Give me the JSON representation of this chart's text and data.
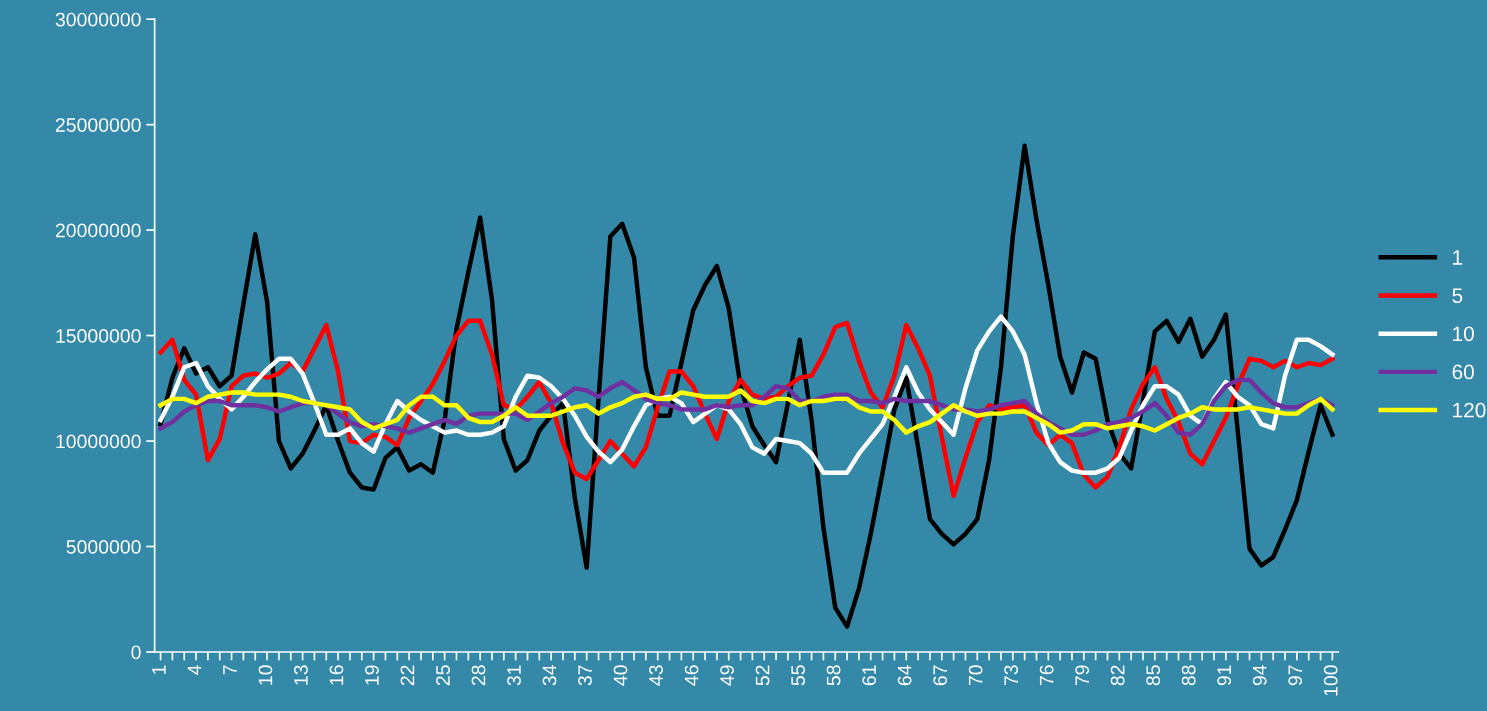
{
  "chart_data": {
    "type": "line",
    "categories": [
      "1",
      null,
      null,
      "4",
      null,
      null,
      "7",
      null,
      null,
      "10",
      null,
      null,
      "13",
      null,
      null,
      "16",
      null,
      null,
      "19",
      null,
      null,
      "22",
      null,
      null,
      "25",
      null,
      null,
      "28",
      null,
      null,
      "31",
      null,
      null,
      "34",
      null,
      null,
      "37",
      null,
      null,
      "40",
      null,
      null,
      "43",
      null,
      null,
      "46",
      null,
      null,
      "49",
      null,
      null,
      "52",
      null,
      null,
      "55",
      null,
      null,
      "58",
      null,
      null,
      "61",
      null,
      null,
      "64",
      null,
      null,
      "67",
      null,
      null,
      "70",
      null,
      null,
      "73",
      null,
      null,
      "76",
      null,
      null,
      "79",
      null,
      null,
      "82",
      null,
      null,
      "85",
      null,
      null,
      "88",
      null,
      null,
      "91",
      null,
      null,
      "94",
      null,
      null,
      "97",
      null,
      null,
      "100"
    ],
    "ylim": [
      0,
      30000000
    ],
    "yticks": [
      0,
      5000000,
      10000000,
      15000000,
      20000000,
      25000000,
      30000000
    ],
    "grid": false,
    "legend": "right",
    "marker": "none",
    "line_style": "solid",
    "series": [
      {
        "name": "1",
        "color": "#000000",
        "values": [
          10800000,
          13000000,
          14400000,
          13200000,
          13500000,
          12600000,
          13100000,
          16500000,
          19800000,
          16600000,
          10000000,
          8700000,
          9400000,
          10500000,
          11700000,
          10000000,
          8500000,
          7800000,
          7700000,
          9200000,
          9700000,
          8600000,
          8900000,
          8500000,
          11000000,
          15300000,
          18000000,
          20600000,
          16700000,
          10100000,
          8600000,
          9100000,
          10500000,
          11200000,
          11800000,
          7300000,
          4000000,
          12000000,
          19700000,
          20300000,
          18700000,
          13500000,
          11200000,
          11200000,
          13700000,
          16200000,
          17400000,
          18300000,
          16300000,
          12600000,
          10700000,
          9800000,
          9000000,
          11800000,
          14800000,
          11000000,
          5900000,
          2100000,
          1200000,
          3000000,
          5600000,
          8500000,
          11500000,
          13000000,
          9700000,
          6300000,
          5600000,
          5100000,
          5600000,
          6300000,
          9100000,
          13500000,
          19700000,
          24000000,
          20500000,
          17400000,
          14000000,
          12300000,
          14200000,
          13900000,
          11000000,
          9400000,
          8700000,
          11900000,
          15200000,
          15700000,
          14700000,
          15800000,
          14000000,
          14800000,
          16000000,
          10500000,
          4900000,
          4100000,
          4500000,
          5800000,
          7200000,
          9500000,
          11700000,
          10300000
        ]
      },
      {
        "name": "5",
        "color": "#ff0000",
        "values": [
          14200000,
          14800000,
          12900000,
          12200000,
          9100000,
          10100000,
          12600000,
          13100000,
          13200000,
          13000000,
          13200000,
          13700000,
          13300000,
          14400000,
          15500000,
          13300000,
          10000000,
          9900000,
          10300000,
          10200000,
          9800000,
          11100000,
          11900000,
          12700000,
          13800000,
          15000000,
          15700000,
          15700000,
          14100000,
          11700000,
          11500000,
          12100000,
          12800000,
          11800000,
          9900000,
          8500000,
          8200000,
          9100000,
          10000000,
          9400000,
          8800000,
          9700000,
          11600000,
          13300000,
          13300000,
          12600000,
          11300000,
          10100000,
          11900000,
          12900000,
          12200000,
          12000000,
          12100000,
          12600000,
          13000000,
          13100000,
          14100000,
          15400000,
          15600000,
          13800000,
          12300000,
          11600000,
          13100000,
          15500000,
          14400000,
          13100000,
          10200000,
          7400000,
          9200000,
          10900000,
          11700000,
          11500000,
          11600000,
          11700000,
          10400000,
          9800000,
          10300000,
          9900000,
          8400000,
          7800000,
          8300000,
          9700000,
          11500000,
          12700000,
          13500000,
          12000000,
          10900000,
          9400000,
          8900000,
          10000000,
          11100000,
          12600000,
          13900000,
          13800000,
          13500000,
          13800000,
          13500000,
          13700000,
          13600000,
          13900000
        ]
      },
      {
        "name": "10",
        "color": "#ffffff",
        "values": [
          11000000,
          12100000,
          13500000,
          13700000,
          12600000,
          12000000,
          11500000,
          12100000,
          12800000,
          13400000,
          13900000,
          13900000,
          13200000,
          11800000,
          10300000,
          10300000,
          10600000,
          9900000,
          9500000,
          10800000,
          11900000,
          11400000,
          11000000,
          10700000,
          10400000,
          10500000,
          10300000,
          10300000,
          10400000,
          10700000,
          12100000,
          13100000,
          13000000,
          12600000,
          12000000,
          11200000,
          10200000,
          9500000,
          9000000,
          9600000,
          10700000,
          11700000,
          12000000,
          12100000,
          11800000,
          10900000,
          11300000,
          11700000,
          11500000,
          10800000,
          9700000,
          9400000,
          10100000,
          10000000,
          9900000,
          9400000,
          8500000,
          8500000,
          8500000,
          9400000,
          10100000,
          10800000,
          12100000,
          13500000,
          12300000,
          11500000,
          10900000,
          10300000,
          12500000,
          14300000,
          15200000,
          15900000,
          15200000,
          14100000,
          11800000,
          9900000,
          9000000,
          8600000,
          8500000,
          8500000,
          8700000,
          9200000,
          10500000,
          11700000,
          12600000,
          12600000,
          12200000,
          11200000,
          10800000,
          12000000,
          12800000,
          12100000,
          11700000,
          10800000,
          10600000,
          13100000,
          14800000,
          14800000,
          14500000,
          14100000
        ]
      },
      {
        "name": "60",
        "color": "#7030a0",
        "values": [
          10600000,
          10900000,
          11400000,
          11700000,
          11900000,
          11900000,
          11700000,
          11700000,
          11700000,
          11600000,
          11400000,
          11600000,
          11800000,
          11800000,
          11700000,
          11300000,
          10900000,
          10700000,
          10800000,
          10700000,
          10600000,
          10400000,
          10600000,
          10800000,
          11000000,
          10800000,
          11200000,
          11300000,
          11300000,
          11300000,
          11300000,
          11000000,
          11400000,
          11800000,
          12100000,
          12500000,
          12400000,
          12100000,
          12500000,
          12800000,
          12400000,
          12000000,
          11800000,
          11700000,
          11500000,
          11500000,
          11500000,
          11700000,
          11600000,
          11700000,
          11700000,
          12100000,
          12600000,
          12500000,
          11900000,
          11900000,
          12100000,
          12200000,
          12200000,
          11900000,
          11900000,
          11800000,
          12000000,
          11900000,
          11900000,
          11900000,
          11700000,
          11500000,
          11500000,
          11400000,
          11500000,
          11700000,
          11800000,
          11900000,
          11300000,
          10900000,
          10600000,
          10300000,
          10300000,
          10500000,
          10800000,
          10900000,
          11100000,
          11400000,
          11800000,
          11200000,
          10400000,
          10300000,
          10800000,
          11900000,
          12600000,
          12900000,
          12900000,
          12300000,
          11800000,
          11600000,
          11600000,
          11800000,
          12000000,
          11700000
        ]
      },
      {
        "name": "120",
        "color": "#ffff00",
        "values": [
          11700000,
          12000000,
          12000000,
          11800000,
          12100000,
          12200000,
          12300000,
          12300000,
          12200000,
          12200000,
          12200000,
          12100000,
          11900000,
          11800000,
          11700000,
          11600000,
          11500000,
          10900000,
          10600000,
          10800000,
          11000000,
          11700000,
          12100000,
          12100000,
          11700000,
          11700000,
          11100000,
          10900000,
          10900000,
          11200000,
          11600000,
          11200000,
          11200000,
          11200000,
          11400000,
          11600000,
          11700000,
          11300000,
          11600000,
          11800000,
          12100000,
          12200000,
          12000000,
          12000000,
          12300000,
          12200000,
          12100000,
          12100000,
          12100000,
          12400000,
          11900000,
          11800000,
          12000000,
          12000000,
          11700000,
          11900000,
          11900000,
          12000000,
          12000000,
          11600000,
          11400000,
          11400000,
          11000000,
          10400000,
          10700000,
          10900000,
          11300000,
          11700000,
          11400000,
          11200000,
          11300000,
          11300000,
          11400000,
          11400000,
          11100000,
          10800000,
          10400000,
          10500000,
          10800000,
          10800000,
          10600000,
          10700000,
          10800000,
          10700000,
          10500000,
          10800000,
          11100000,
          11300000,
          11600000,
          11500000,
          11500000,
          11500000,
          11600000,
          11500000,
          11400000,
          11300000,
          11300000,
          11700000,
          12000000,
          11500000
        ]
      }
    ]
  }
}
